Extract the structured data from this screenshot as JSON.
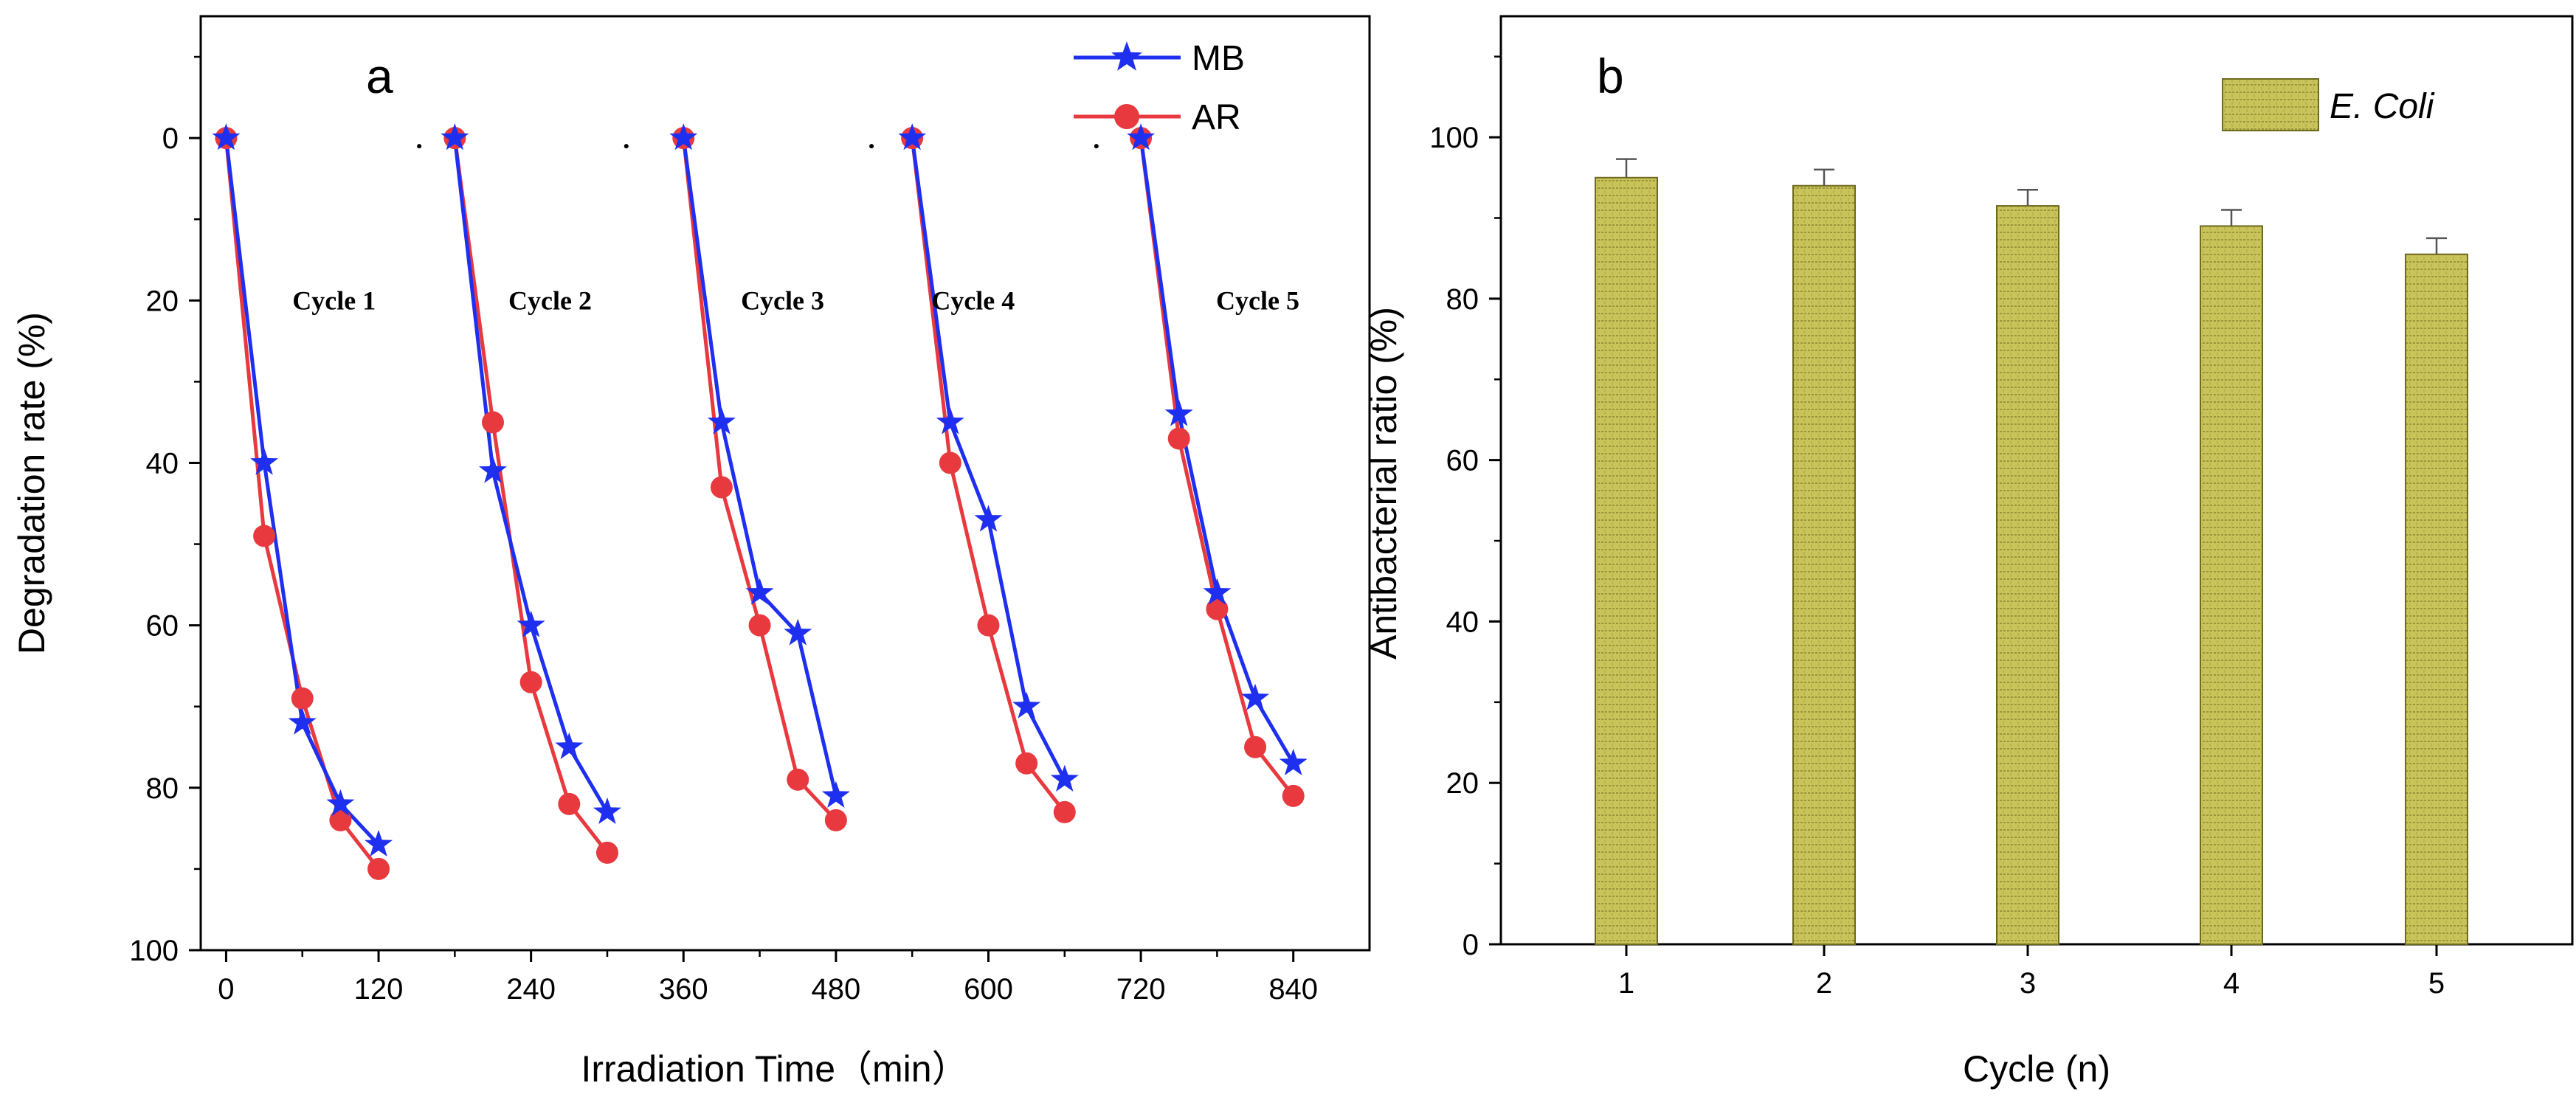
{
  "figure": {
    "colors": {
      "mb": "#1f2ff0",
      "ar": "#e8393f",
      "bar_fill": "#c9c45a",
      "bar_stroke": "#6e6a1e",
      "axis": "#000000"
    }
  },
  "chart_data": [
    {
      "type": "line",
      "panel_label": "a",
      "xlabel": "Irradiation Time（min）",
      "ylabel": "Degradation rate (%)",
      "xlim": [
        -20,
        900
      ],
      "ylim": [
        -15,
        100
      ],
      "y_inverted": true,
      "xticks": [
        0,
        120,
        240,
        360,
        480,
        600,
        720,
        840
      ],
      "yticks": [
        0,
        20,
        40,
        60,
        80,
        100
      ],
      "legend_position": "top-right",
      "series": [
        {
          "name": "MB",
          "marker": "star",
          "color_key": "mb",
          "segments": [
            {
              "x": [
                0,
                30,
                60,
                90,
                120
              ],
              "y": [
                0,
                40,
                72,
                82,
                87
              ]
            },
            {
              "x": [
                180,
                210,
                240,
                270,
                300
              ],
              "y": [
                0,
                41,
                60,
                75,
                83
              ]
            },
            {
              "x": [
                360,
                390,
                420,
                450,
                480
              ],
              "y": [
                0,
                35,
                56,
                61,
                81
              ]
            },
            {
              "x": [
                540,
                570,
                600,
                630,
                660
              ],
              "y": [
                0,
                35,
                47,
                70,
                79
              ]
            },
            {
              "x": [
                720,
                750,
                780,
                810,
                840
              ],
              "y": [
                0,
                34,
                56,
                69,
                77
              ]
            }
          ]
        },
        {
          "name": "AR",
          "marker": "circle",
          "color_key": "ar",
          "segments": [
            {
              "x": [
                0,
                30,
                60,
                90,
                120
              ],
              "y": [
                0,
                49,
                69,
                84,
                90
              ]
            },
            {
              "x": [
                180,
                210,
                240,
                270,
                300
              ],
              "y": [
                0,
                35,
                67,
                82,
                88
              ]
            },
            {
              "x": [
                360,
                390,
                420,
                450,
                480
              ],
              "y": [
                0,
                43,
                60,
                79,
                84
              ]
            },
            {
              "x": [
                540,
                570,
                600,
                630,
                660
              ],
              "y": [
                0,
                40,
                60,
                77,
                83
              ]
            },
            {
              "x": [
                720,
                750,
                780,
                810,
                840
              ],
              "y": [
                0,
                37,
                58,
                75,
                81
              ]
            }
          ]
        }
      ],
      "annotations": [
        {
          "text": "Cycle 1",
          "x": 85,
          "y": 20
        },
        {
          "text": "Cycle 2",
          "x": 255,
          "y": 20
        },
        {
          "text": "Cycle 3",
          "x": 438,
          "y": 20
        },
        {
          "text": "Cycle 4",
          "x": 588,
          "y": 20
        },
        {
          "text": "Cycle 5",
          "x": 812,
          "y": 20
        }
      ],
      "dots": [
        {
          "x": 152,
          "y": 1
        },
        {
          "x": 315,
          "y": 1
        },
        {
          "x": 508,
          "y": 1
        },
        {
          "x": 685,
          "y": 1
        }
      ]
    },
    {
      "type": "bar",
      "panel_label": "b",
      "xlabel": "Cycle (n)",
      "ylabel": "Antibacterial ratio (%)",
      "categories": [
        "1",
        "2",
        "3",
        "4",
        "5"
      ],
      "series": [
        {
          "name": "E. Coli",
          "values": [
            95,
            94,
            91.5,
            89,
            85.5
          ],
          "errors": [
            2.3,
            2.0,
            2.0,
            2.0,
            2.0
          ]
        }
      ],
      "ylim": [
        0,
        115
      ],
      "yticks": [
        0,
        20,
        40,
        60,
        80,
        100
      ],
      "legend_position": "top-right"
    }
  ]
}
